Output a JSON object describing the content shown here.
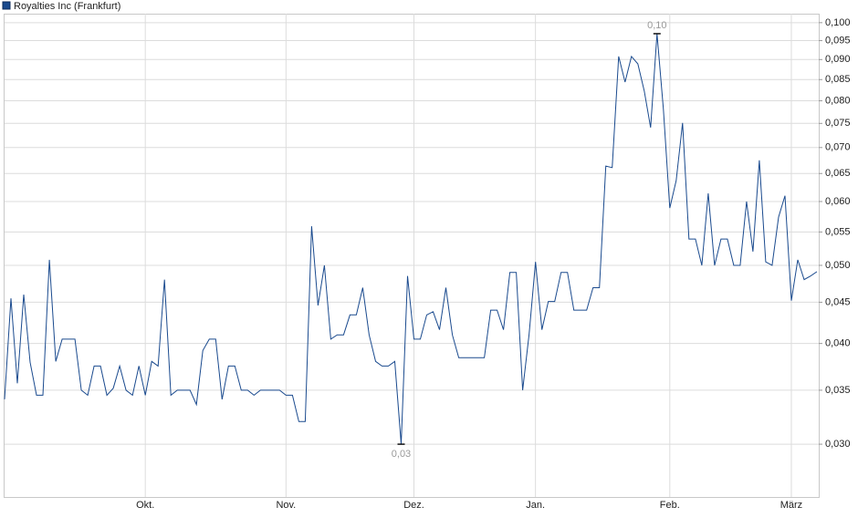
{
  "chart_data": {
    "type": "line",
    "log_scale": true,
    "grid": true,
    "categories": [
      null,
      null,
      null,
      null,
      null,
      null,
      null,
      null,
      null,
      null,
      null,
      null,
      null,
      null,
      null,
      null,
      null,
      null,
      null,
      null,
      null,
      null,
      "Okt.",
      null,
      null,
      null,
      null,
      null,
      null,
      null,
      null,
      null,
      null,
      null,
      null,
      null,
      null,
      null,
      null,
      null,
      null,
      null,
      null,
      null,
      "Nov.",
      null,
      null,
      null,
      null,
      null,
      null,
      null,
      null,
      null,
      null,
      null,
      null,
      null,
      null,
      null,
      null,
      null,
      null,
      null,
      "Dez.",
      null,
      null,
      null,
      null,
      null,
      null,
      null,
      null,
      null,
      null,
      null,
      null,
      null,
      null,
      null,
      null,
      null,
      null,
      "Jan.",
      null,
      null,
      null,
      null,
      null,
      null,
      null,
      null,
      null,
      null,
      null,
      null,
      null,
      null,
      null,
      null,
      null,
      null,
      null,
      null,
      "Feb.",
      null,
      null,
      null,
      null,
      null,
      null,
      null,
      null,
      null,
      null,
      null,
      null,
      null,
      null,
      null,
      null,
      null,
      null,
      "März",
      null,
      null,
      null,
      null
    ],
    "series": [
      {
        "name": "Royalties Inc (Frankfurt)",
        "color": "#1a4a8e",
        "values": [
          0.0341,
          0.0455,
          0.0357,
          0.046,
          0.0379,
          0.0345,
          0.0345,
          0.0508,
          0.038,
          0.0405,
          0.0405,
          0.0405,
          0.035,
          0.0345,
          0.0375,
          0.0375,
          0.0345,
          0.0352,
          0.0375,
          0.035,
          0.0345,
          0.0375,
          0.0345,
          0.038,
          0.0375,
          0.048,
          0.0345,
          0.035,
          0.035,
          0.035,
          0.0336,
          0.0392,
          0.0405,
          0.0405,
          0.0341,
          0.0375,
          0.0375,
          0.035,
          0.035,
          0.0345,
          0.035,
          0.035,
          0.035,
          0.035,
          0.0345,
          0.0345,
          0.032,
          0.032,
          0.0559,
          0.0446,
          0.05,
          0.0405,
          0.041,
          0.041,
          0.0434,
          0.0434,
          0.0469,
          0.041,
          0.038,
          0.0375,
          0.0375,
          0.038,
          0.03,
          0.0485,
          0.0405,
          0.0405,
          0.0434,
          0.0438,
          0.0416,
          0.0469,
          0.041,
          0.0384,
          0.0384,
          0.0384,
          0.0384,
          0.0384,
          0.044,
          0.044,
          0.0416,
          0.049,
          0.049,
          0.035,
          0.041,
          0.0505,
          0.0416,
          0.0451,
          0.0451,
          0.049,
          0.049,
          0.044,
          0.044,
          0.044,
          0.0469,
          0.0469,
          0.0664,
          0.0661,
          0.0908,
          0.0844,
          0.0908,
          0.0889,
          0.0823,
          0.0741,
          0.0969,
          0.0781,
          0.0589,
          0.0637,
          0.0751,
          0.0539,
          0.0539,
          0.05,
          0.0614,
          0.05,
          0.0539,
          0.0539,
          0.05,
          0.05,
          0.06,
          0.052,
          0.0675,
          0.0505,
          0.05,
          0.0574,
          0.061,
          0.0452,
          0.0508,
          0.048,
          0.0485,
          0.0491
        ],
        "value_labels": [
          null,
          null,
          null,
          null,
          null,
          null,
          null,
          null,
          null,
          null,
          null,
          null,
          null,
          null,
          null,
          null,
          null,
          null,
          null,
          null,
          null,
          null,
          null,
          null,
          null,
          null,
          null,
          null,
          null,
          null,
          null,
          null,
          null,
          null,
          null,
          null,
          null,
          null,
          null,
          null,
          null,
          null,
          null,
          null,
          null,
          null,
          null,
          null,
          null,
          null,
          null,
          null,
          null,
          null,
          null,
          null,
          null,
          null,
          null,
          null,
          null,
          null,
          "0,03",
          null,
          null,
          null,
          null,
          null,
          null,
          null,
          null,
          null,
          null,
          null,
          null,
          null,
          null,
          null,
          null,
          null,
          null,
          null,
          null,
          null,
          null,
          null,
          null,
          null,
          null,
          null,
          null,
          null,
          null,
          null,
          null,
          null,
          null,
          null,
          null,
          null,
          null,
          null,
          "0,10",
          null,
          null,
          null,
          null,
          null,
          null,
          null,
          null,
          null,
          null,
          null,
          null,
          null,
          null,
          null,
          null,
          null,
          null,
          null,
          null,
          null,
          null,
          null,
          null,
          null
        ]
      }
    ],
    "ylim": [
      0.0258,
      0.1026
    ],
    "yticks": [
      {
        "value": 0.03,
        "label": "0,030"
      },
      {
        "value": 0.035,
        "label": "0,035"
      },
      {
        "value": 0.04,
        "label": "0,040"
      },
      {
        "value": 0.045,
        "label": "0,045"
      },
      {
        "value": 0.05,
        "label": "0,050"
      },
      {
        "value": 0.055,
        "label": "0,055"
      },
      {
        "value": 0.06,
        "label": "0,060"
      },
      {
        "value": 0.065,
        "label": "0,065"
      },
      {
        "value": 0.07,
        "label": "0,070"
      },
      {
        "value": 0.075,
        "label": "0,075"
      },
      {
        "value": 0.08,
        "label": "0,080"
      },
      {
        "value": 0.085,
        "label": "0,085"
      },
      {
        "value": 0.09,
        "label": "0,090"
      },
      {
        "value": 0.095,
        "label": "0,095"
      },
      {
        "value": 0.1,
        "label": "0,100"
      }
    ]
  }
}
